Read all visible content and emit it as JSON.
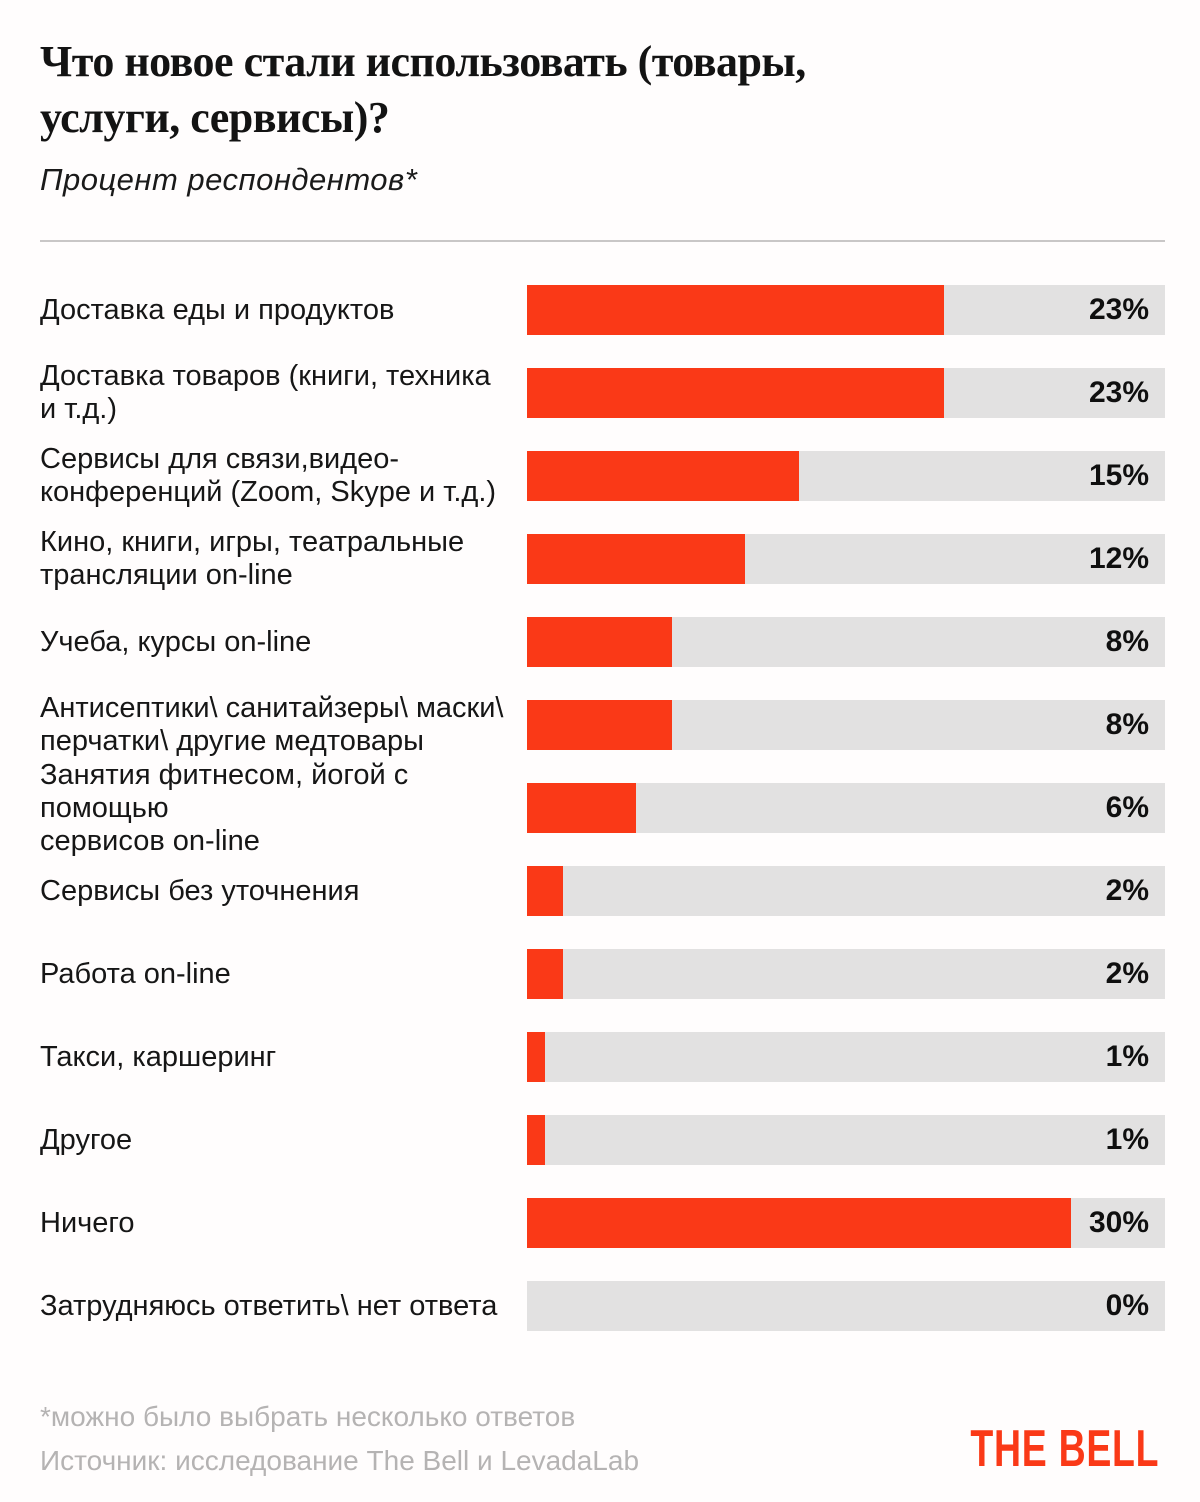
{
  "page": {
    "title": "Что новое стали использовать (товары,\nуслуги, сервисы)?",
    "subtitle": "Процент респондентов*",
    "footnote": "*можно было выбрать несколько ответов",
    "source": "Источник: исследование The Bell и LevadaLab",
    "logo": "THE BELL"
  },
  "colors": {
    "bar": "#fa3917",
    "track": "#e2e1e1",
    "logo": "#fa3917",
    "footnote_gray": "#b5b3b3"
  },
  "chart_data": {
    "type": "bar",
    "orientation": "horizontal",
    "title": "Что новое стали использовать (товары, услуги, сервисы)?",
    "subtitle": "Процент респондентов*",
    "unit": "%",
    "axis_max": 35.2,
    "grid": false,
    "legend": false,
    "categories": [
      "Доставка еды и продуктов",
      "Доставка товаров (книги, техника\nи т.д.)",
      "Сервисы для связи,видео-\nконференций (Zoom, Skype и т.д.)",
      "Кино, книги, игры, театральные\nтрансляции on-line",
      "Учеба, курсы on-line",
      "Антисептики\\ санитайзеры\\ маски\\\nперчатки\\ другие медтовары",
      "Занятия фитнесом, йогой с помощью\nсервисов on-line",
      "Сервисы без уточнения",
      "Работа on-line",
      "Такси, каршеринг",
      "Другое",
      "Ничего",
      "Затрудняюсь ответить\\ нет ответа"
    ],
    "values": [
      23,
      23,
      15,
      12,
      8,
      8,
      6,
      2,
      2,
      1,
      1,
      30,
      0
    ],
    "value_labels": [
      "23%",
      "23%",
      "15%",
      "12%",
      "8%",
      "8%",
      "6%",
      "2%",
      "2%",
      "1%",
      "1%",
      "30%",
      "0%"
    ]
  }
}
